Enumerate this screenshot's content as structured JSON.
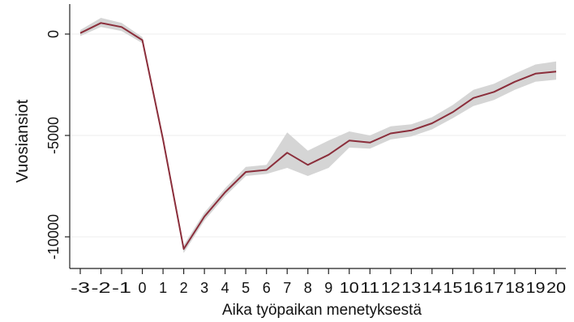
{
  "chart_data": {
    "type": "line",
    "title": "",
    "xlabel": "Aika työpaikan menetyksestä",
    "ylabel": "Vuosiansiot",
    "x": [
      -3,
      -2,
      -1,
      0,
      1,
      2,
      3,
      4,
      5,
      6,
      7,
      8,
      9,
      10,
      11,
      12,
      13,
      14,
      15,
      16,
      17,
      18,
      19,
      20
    ],
    "x_tick_labels": [
      "-3",
      "-2",
      "-1",
      "0",
      "1",
      "2",
      "3",
      "4",
      "5",
      "6",
      "7",
      "8",
      "9",
      "10",
      "11",
      "12",
      "13",
      "14",
      "15",
      "16",
      "17",
      "18",
      "19",
      "20"
    ],
    "y_ticks": [
      0,
      -5000,
      -10000
    ],
    "y_tick_labels": [
      "0",
      "-5000",
      "-10000"
    ],
    "xlim": [
      -3,
      20
    ],
    "ylim": [
      -11500,
      1300
    ],
    "grid": true,
    "series": [
      {
        "values": [
          50,
          550,
          350,
          -300,
          -5200,
          -10600,
          -9000,
          -7800,
          -6800,
          -6700,
          -5850,
          -6450,
          -5950,
          -5250,
          -5350,
          -4900,
          -4750,
          -4400,
          -3850,
          -3150,
          -2850,
          -2350,
          -1950,
          -1850
        ],
        "ci_lower": [
          -100,
          350,
          150,
          -450,
          -5350,
          -10800,
          -9200,
          -8000,
          -7000,
          -6900,
          -6600,
          -7000,
          -6600,
          -5600,
          -5650,
          -5200,
          -5050,
          -4700,
          -4150,
          -3550,
          -3250,
          -2750,
          -2350,
          -2250
        ],
        "ci_upper": [
          200,
          800,
          550,
          -150,
          -5050,
          -10400,
          -8800,
          -7600,
          -6550,
          -6450,
          -4850,
          -5750,
          -5250,
          -4800,
          -5000,
          -4550,
          -4450,
          -4100,
          -3500,
          -2750,
          -2450,
          -1950,
          -1500,
          -1350
        ],
        "color": "#8b2e3b",
        "ci_color": "#d5d5d5"
      }
    ]
  }
}
